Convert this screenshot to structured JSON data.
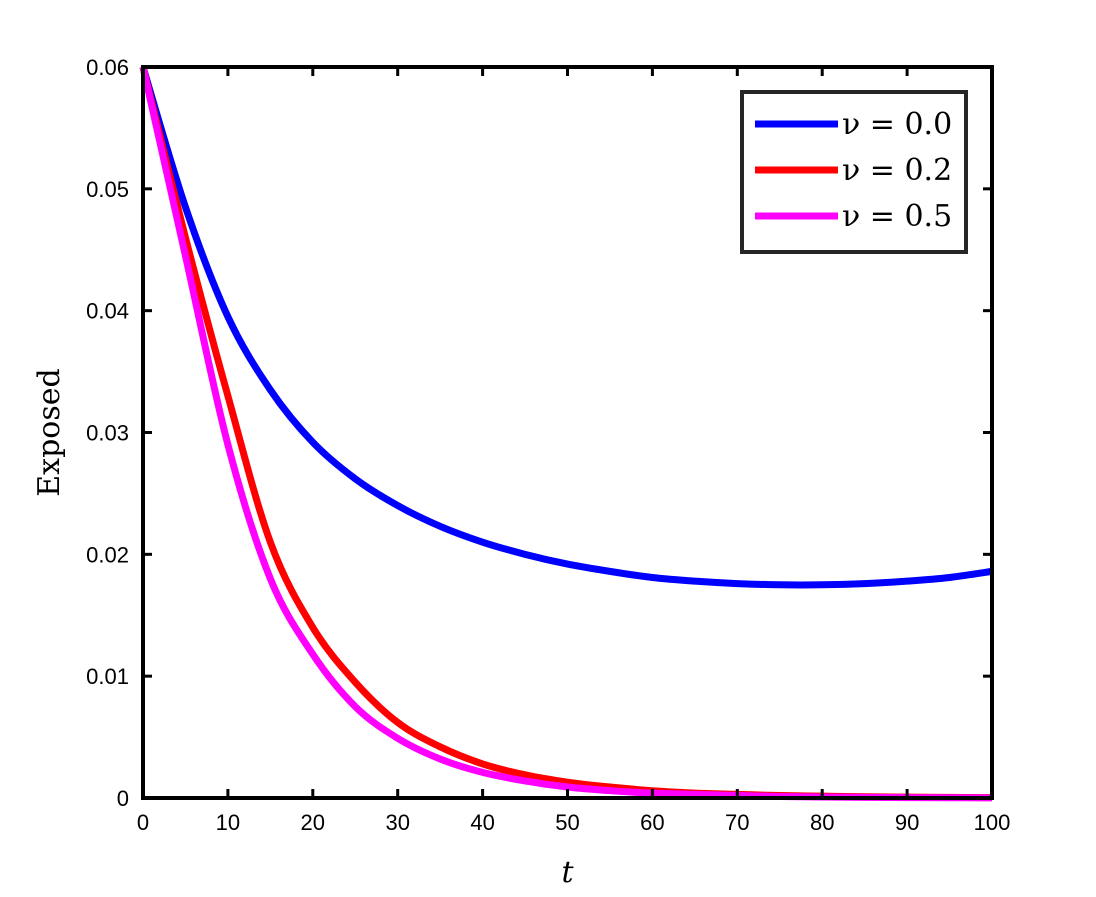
{
  "chart_data": {
    "type": "line",
    "title": "",
    "xlabel": "t",
    "ylabel": "Exposed",
    "xlim": [
      0,
      100
    ],
    "ylim": [
      0,
      0.06
    ],
    "xticks": [
      0,
      10,
      20,
      30,
      40,
      50,
      60,
      70,
      80,
      90,
      100
    ],
    "xtick_labels": [
      "0",
      "10",
      "20",
      "30",
      "40",
      "50",
      "60",
      "70",
      "80",
      "90",
      "100"
    ],
    "yticks": [
      0,
      0.01,
      0.02,
      0.03,
      0.04,
      0.05,
      0.06
    ],
    "ytick_labels": [
      "0",
      "0.01",
      "0.02",
      "0.03",
      "0.04",
      "0.05",
      "0.06"
    ],
    "grid": false,
    "legend_position": "top-right",
    "x": [
      0,
      5,
      10,
      15,
      20,
      25,
      30,
      35,
      40,
      45,
      50,
      55,
      60,
      65,
      70,
      75,
      80,
      85,
      90,
      95,
      100
    ],
    "series": [
      {
        "name": "ν = 0.0",
        "color": "#0000ff",
        "values": [
          0.06,
          0.0485,
          0.0395,
          0.0335,
          0.0292,
          0.0262,
          0.024,
          0.0223,
          0.021,
          0.02,
          0.0192,
          0.0186,
          0.0181,
          0.0178,
          0.0176,
          0.0175,
          0.0175,
          0.0176,
          0.0178,
          0.0181,
          0.0186
        ]
      },
      {
        "name": "ν = 0.2",
        "color": "#ff0000",
        "values": [
          0.06,
          0.046,
          0.033,
          0.021,
          0.014,
          0.0095,
          0.0062,
          0.0042,
          0.0028,
          0.0019,
          0.0013,
          0.0009,
          0.0006,
          0.0004,
          0.0003,
          0.0002,
          0.00015,
          0.0001,
          7e-05,
          5e-05,
          3e-05
        ]
      },
      {
        "name": "ν = 0.5",
        "color": "#ff00ff",
        "values": [
          0.06,
          0.0445,
          0.029,
          0.018,
          0.0118,
          0.0075,
          0.0049,
          0.0032,
          0.0021,
          0.0014,
          0.0009,
          0.0006,
          0.0004,
          0.0003,
          0.0002,
          0.00012,
          8e-05,
          5e-05,
          3e-05,
          2e-05,
          1e-05
        ]
      }
    ]
  }
}
